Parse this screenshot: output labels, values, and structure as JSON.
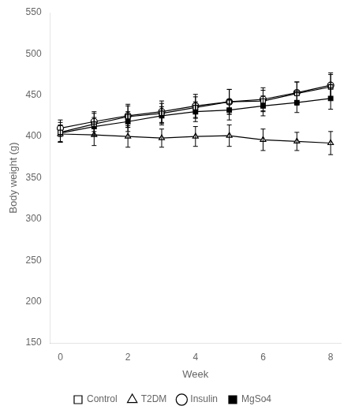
{
  "chart_data": {
    "type": "line",
    "xlabel": "Week",
    "ylabel": "Body weight (g)",
    "x": [
      0,
      1,
      2,
      3,
      4,
      5,
      6,
      7,
      8
    ],
    "series": [
      {
        "name": "Control",
        "color": "#000000",
        "marker": "square-open",
        "values": [
          405,
          415,
          424,
          428,
          435,
          442,
          443,
          452,
          460
        ],
        "errors": [
          12,
          13,
          13,
          12,
          13,
          15,
          13,
          14,
          15
        ]
      },
      {
        "name": "T2DM",
        "color": "#000000",
        "marker": "triangle-open",
        "values": [
          403,
          402,
          400,
          398,
          400,
          401,
          396,
          394,
          392
        ],
        "errors": [
          10,
          13,
          13,
          11,
          12,
          13,
          13,
          11,
          14
        ]
      },
      {
        "name": "Insulin",
        "color": "#000000",
        "marker": "circle-open",
        "values": [
          410,
          418,
          425,
          430,
          437,
          442,
          445,
          453,
          462
        ],
        "errors": [
          10,
          12,
          14,
          13,
          14,
          15,
          14,
          13,
          15
        ]
      },
      {
        "name": "MgSo4",
        "color": "#000000",
        "marker": "square-filled",
        "values": [
          404,
          412,
          418,
          425,
          430,
          432,
          437,
          441,
          446
        ],
        "errors": [
          10,
          11,
          12,
          11,
          12,
          12,
          12,
          12,
          13
        ]
      }
    ],
    "xlim": [
      -0.3,
      8.3
    ],
    "xticks": [
      0,
      2,
      4,
      6,
      8
    ],
    "ylim": [
      150,
      550
    ],
    "yticks": [
      150,
      200,
      250,
      300,
      350,
      400,
      450,
      500,
      550
    ],
    "grid": false,
    "legend": "bottom"
  }
}
